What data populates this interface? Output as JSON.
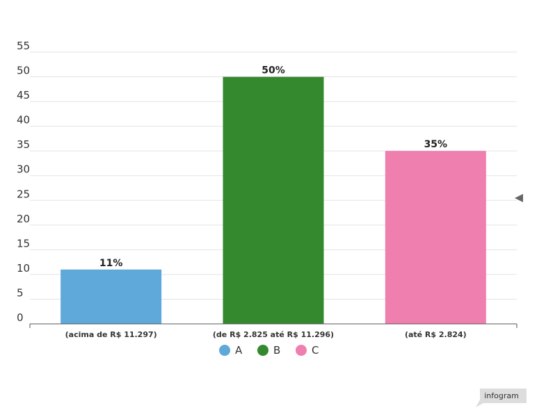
{
  "chart_data": {
    "type": "bar",
    "categories": [
      "(acima de R$ 11.297)",
      "(de R$ 2.825 até R$ 11.296)",
      "(até R$ 2.824)"
    ],
    "series": [
      {
        "name": "A",
        "values": [
          11,
          0,
          0
        ]
      },
      {
        "name": "B",
        "values": [
          0,
          50,
          0
        ]
      },
      {
        "name": "C",
        "values": [
          0,
          0,
          35
        ]
      }
    ],
    "values": [
      11,
      50,
      35
    ],
    "data_labels": [
      "11%",
      "50%",
      "35%"
    ],
    "colors": [
      "#5fa8da",
      "#34892f",
      "#ef7fae"
    ],
    "legend": [
      "A",
      "B",
      "C"
    ],
    "yticks": [
      "0",
      "5",
      "10",
      "15",
      "20",
      "25",
      "30",
      "35",
      "40",
      "45",
      "50",
      "55"
    ],
    "ylim": [
      0,
      55
    ],
    "grid": true,
    "legend_position": "bottom"
  },
  "branding": {
    "label": "infogram"
  }
}
